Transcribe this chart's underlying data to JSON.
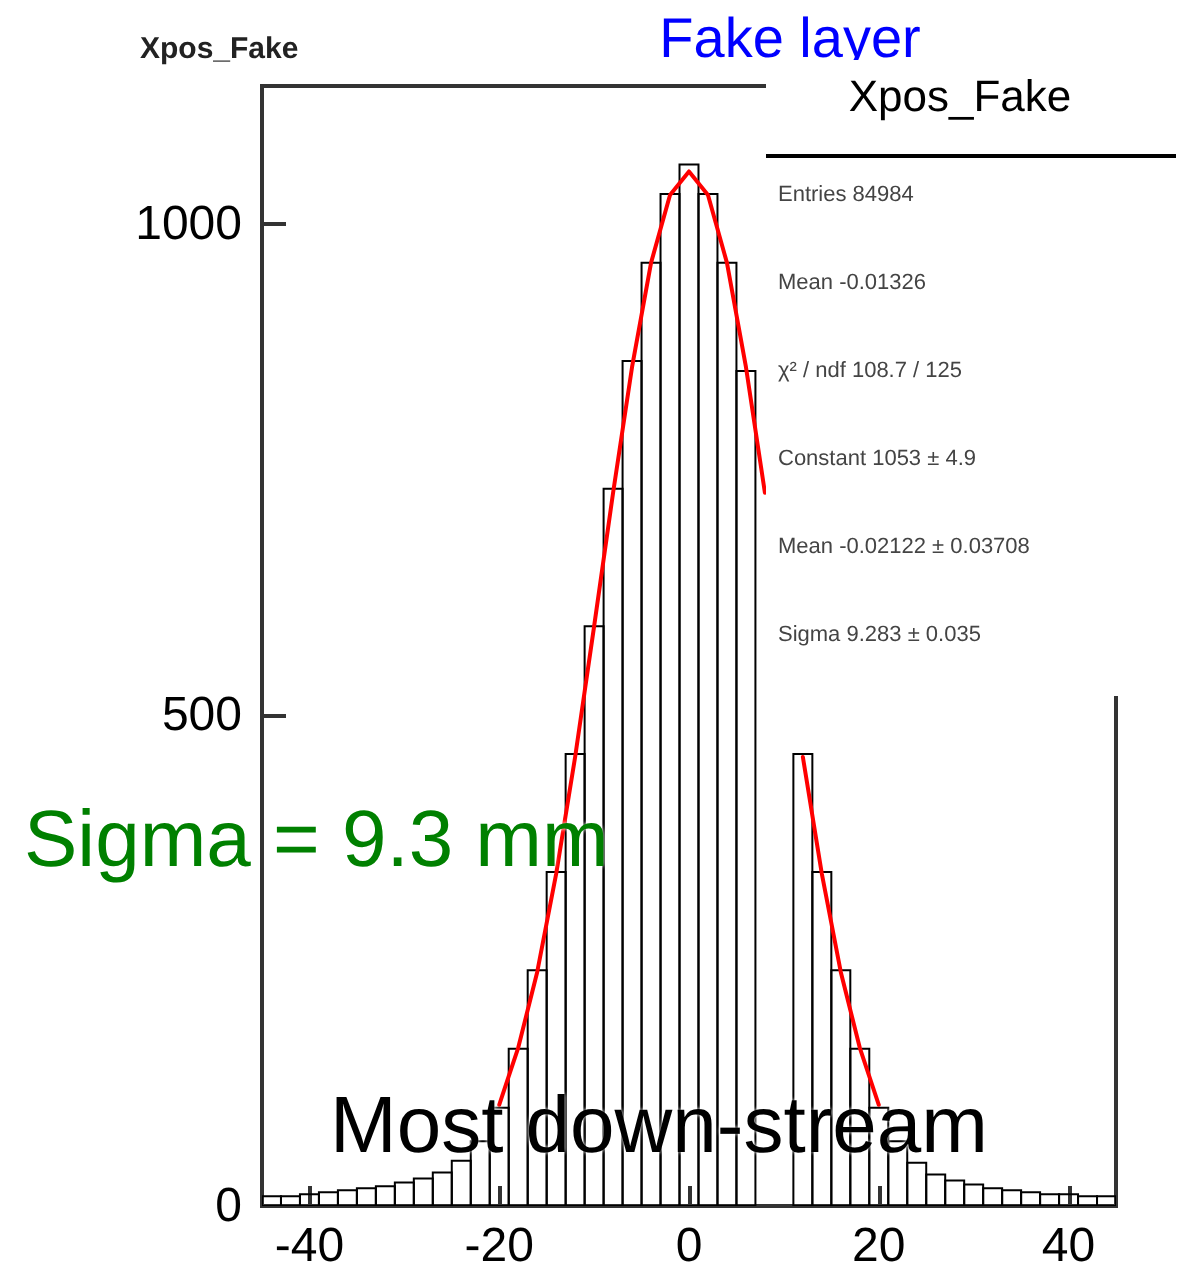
{
  "chart_data": {
    "type": "histogram",
    "title": "Fake layer",
    "subtitle": "Xpos_Fake",
    "bins": [
      -45,
      -43,
      -41,
      -39,
      -37,
      -35,
      -33,
      -31,
      -29,
      -27,
      -25,
      -23,
      -21,
      -19,
      -17,
      -15,
      -13,
      -11,
      -9,
      -7,
      -5,
      -3,
      -1,
      1,
      3,
      5,
      7,
      9,
      11,
      13,
      15,
      17,
      19,
      21,
      23,
      25,
      27,
      29,
      31,
      33,
      35,
      37,
      39,
      41,
      43,
      45
    ],
    "values": [
      10,
      10,
      12,
      14,
      16,
      18,
      20,
      24,
      28,
      34,
      46,
      66,
      100,
      160,
      240,
      340,
      460,
      590,
      730,
      860,
      960,
      1030,
      1060,
      1030,
      960,
      850,
      null,
      null,
      460,
      340,
      240,
      160,
      100,
      66,
      44,
      32,
      26,
      22,
      18,
      16,
      14,
      12,
      12,
      10,
      10
    ],
    "color": "#000000",
    "series": [
      {
        "type": "line",
        "color": "#ff0000",
        "x": [
          -20,
          -18,
          -16,
          -14,
          -12,
          -10,
          -8,
          -6,
          -4,
          -2,
          0,
          2,
          4,
          6,
          8,
          10,
          12,
          14,
          16,
          18,
          20
        ],
        "values": [
          103,
          161,
          238,
          338,
          457,
          590,
          726,
          854,
          960,
          1029,
          1053,
          1029,
          960,
          854,
          726,
          null,
          457,
          338,
          238,
          161,
          103
        ]
      }
    ],
    "xlim": [
      -45,
      45
    ],
    "xticks": [
      -40,
      -20,
      0,
      20,
      40
    ],
    "ylim": [
      0,
      1140
    ],
    "yticks": [
      0,
      500,
      1000
    ],
    "annotations": [
      "Sigma = 9.3 mm",
      "Most down-stream",
      "Xpos_Fake",
      "Entries 84984",
      "Mean -0.01326",
      "χ² / ndf 108.7 / 125",
      "Constant 1053 ± 4.9",
      "Mean -0.02122 ± 0.03708",
      "Sigma 9.283 ± 0.035"
    ]
  }
}
